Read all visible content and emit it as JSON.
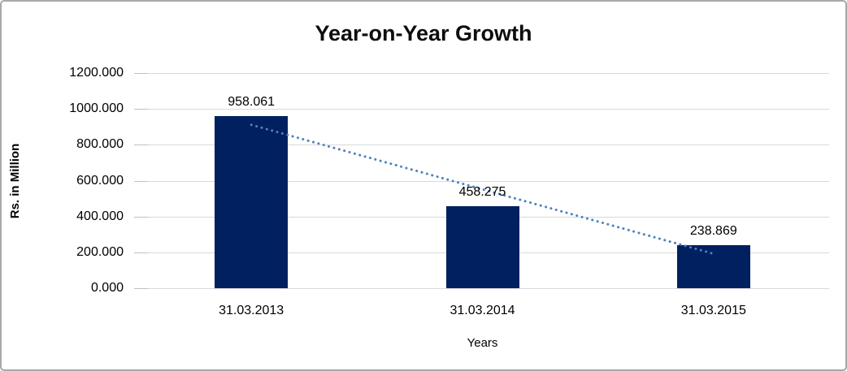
{
  "frame": {
    "border_color": "#a8a8a8",
    "background": "#ffffff"
  },
  "chart_data": {
    "type": "bar",
    "title": "Year-on-Year Growth",
    "categories": [
      "31.03.2013",
      "31.03.2014",
      "31.03.2015"
    ],
    "values": [
      958.061,
      458.275,
      238.869
    ],
    "data_labels": [
      "958.061",
      "458.275",
      "238.869"
    ],
    "xlabel": "Years",
    "ylabel": "Rs. in Million",
    "ylim": [
      0,
      1200
    ],
    "ytick_step": 200,
    "ytick_labels": [
      "0.000",
      "200.000",
      "400.000",
      "600.000",
      "800.000",
      "1000.000",
      "1200.000"
    ],
    "grid": true,
    "legend": "none",
    "bar_color": "#002060",
    "gridline_color": "#d9d9d9",
    "trendline": {
      "type": "linear",
      "style": "dotted",
      "color": "#4e81bd",
      "endpoint_values": [
        911.331,
        192.139
      ]
    }
  }
}
